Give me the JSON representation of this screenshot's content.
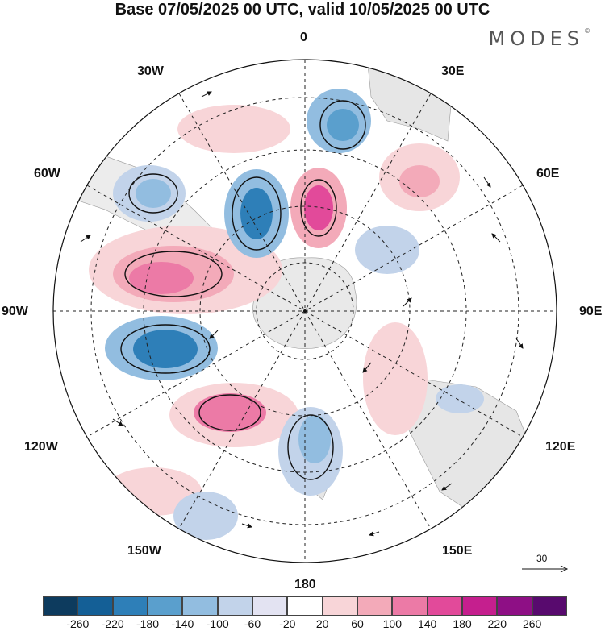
{
  "title": "Base 07/05/2025 00 UTC, valid 10/05/2025 00 UTC",
  "brand": "MODES",
  "brand_mark": "©",
  "lon_labels": {
    "top": "0",
    "top_right": "30E",
    "right_upper": "60E",
    "right": "90E",
    "right_lower": "120E",
    "bottom_right": "150E",
    "bottom": "180",
    "bottom_left": "150W",
    "left_lower": "120W",
    "left": "90W",
    "left_upper": "60W",
    "top_left": "30W"
  },
  "reference_vector": "30",
  "colorbar": {
    "colors": [
      "#0d3b5e",
      "#145f96",
      "#2e7fb8",
      "#5a9fcd",
      "#92bde0",
      "#c2d3ea",
      "#e3e3f2",
      "#ffffff",
      "#f8d5d8",
      "#f3aab9",
      "#ec7aa6",
      "#e24a9a",
      "#c51f8e",
      "#8e0f85",
      "#580a6e"
    ],
    "ticks": [
      "-260",
      "-220",
      "-180",
      "-140",
      "-100",
      "-60",
      "-20",
      "20",
      "60",
      "100",
      "140",
      "180",
      "220",
      "260"
    ]
  }
}
